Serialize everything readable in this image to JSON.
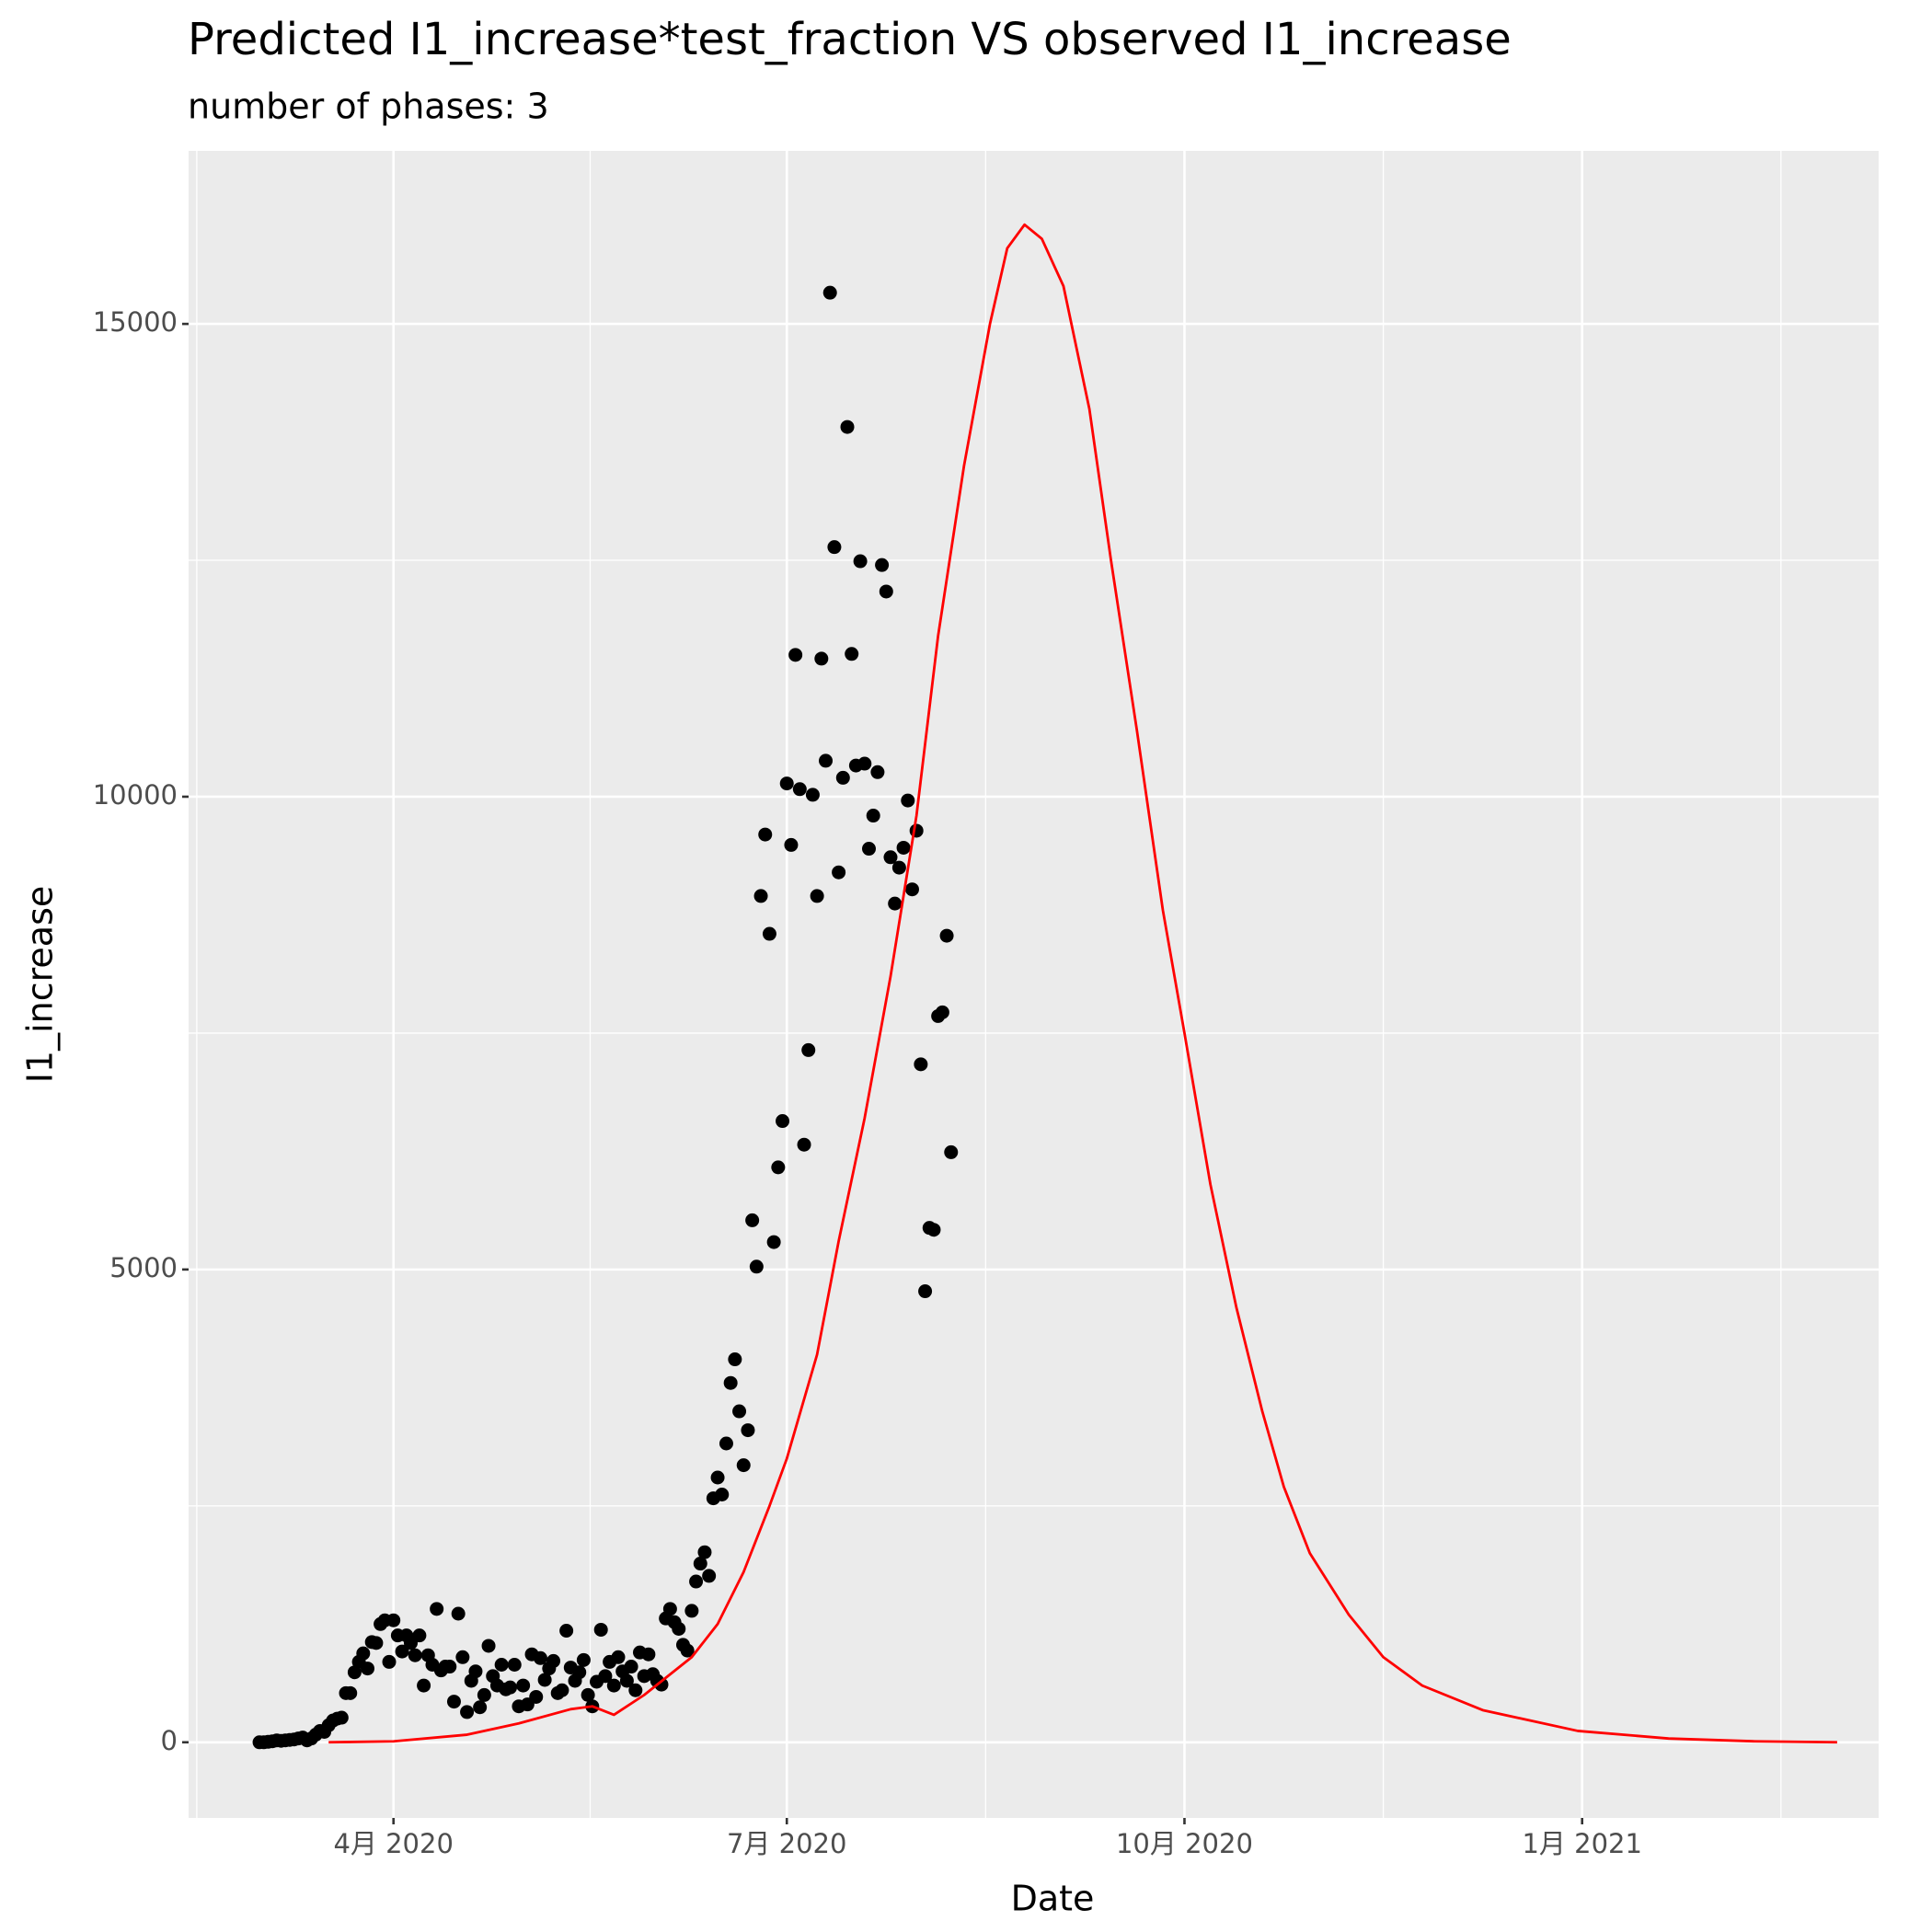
{
  "chart_data": {
    "type": "scatter",
    "title": "Predicted I1_increase*test_fraction VS observed I1_increase",
    "subtitle": "number of phases: 3",
    "x_label": "Date",
    "y_label": "I1_increase",
    "xlim": [
      43.6,
      434.6
    ],
    "ylim": [
      -800,
      16830
    ],
    "xticks": [
      {
        "value": 91,
        "label": "4月 2020"
      },
      {
        "value": 182,
        "label": "7月 2020"
      },
      {
        "value": 274,
        "label": "10月 2020"
      },
      {
        "value": 366,
        "label": "1月 2021"
      }
    ],
    "yticks": [
      0,
      5000,
      10000,
      15000
    ],
    "grid": true,
    "minor_grid": true,
    "series": [
      {
        "type": "scatter",
        "color": "#000000",
        "x": [
          60,
          61,
          62,
          63,
          64,
          65,
          66,
          67,
          68,
          69,
          70,
          71,
          72,
          73,
          74,
          75,
          76,
          77,
          78,
          79,
          80,
          81,
          82,
          83,
          84,
          85,
          86,
          87,
          88,
          89,
          90,
          91,
          92,
          93,
          94,
          95,
          96,
          97,
          98,
          99,
          100,
          101,
          102,
          103,
          104,
          105,
          106,
          107,
          108,
          109,
          110,
          111,
          112,
          113,
          114,
          115,
          116,
          117,
          118,
          119,
          120,
          121,
          122,
          123,
          124,
          125,
          126,
          127,
          128,
          129,
          130,
          131,
          132,
          133,
          134,
          135,
          136,
          137,
          138,
          139,
          140,
          141,
          142,
          143,
          144,
          145,
          146,
          147,
          148,
          149,
          150,
          151,
          152,
          153,
          154,
          155,
          156,
          157,
          158,
          159,
          160,
          161,
          162,
          163,
          164,
          165,
          166,
          167,
          168,
          169,
          170,
          171,
          172,
          173,
          174,
          175,
          176,
          177,
          178,
          179,
          180,
          181,
          182,
          183,
          184,
          185,
          186,
          187,
          188,
          189,
          190,
          191,
          192,
          193,
          194,
          195,
          196,
          197,
          198,
          199,
          200,
          201,
          202,
          203,
          204,
          205,
          206,
          207,
          208,
          209,
          210,
          211,
          212,
          213,
          214,
          215,
          216,
          217,
          218,
          219,
          220
        ],
        "values": [
          0,
          0,
          5,
          10,
          20,
          15,
          20,
          25,
          30,
          40,
          50,
          20,
          40,
          80,
          120,
          110,
          180,
          230,
          250,
          260,
          520,
          520,
          740,
          850,
          940,
          780,
          1060,
          1050,
          1250,
          1290,
          850,
          1290,
          1130,
          960,
          1130,
          1050,
          920,
          1130,
          600,
          920,
          820,
          1410,
          760,
          800,
          800,
          430,
          1360,
          900,
          320,
          650,
          750,
          370,
          500,
          1020,
          700,
          600,
          820,
          560,
          580,
          820,
          380,
          600,
          400,
          930,
          480,
          890,
          660,
          780,
          860,
          520,
          550,
          1180,
          790,
          650,
          740,
          870,
          500,
          380,
          640,
          1190,
          700,
          850,
          600,
          900,
          750,
          650,
          800,
          550,
          950,
          700,
          930,
          720,
          650,
          610,
          1310,
          1410,
          1270,
          1200,
          1030,
          970,
          1390,
          1700,
          1890,
          2010,
          1760,
          2580,
          2800,
          2620,
          3160,
          3800,
          4050,
          3500,
          2930,
          3300,
          5520,
          5030,
          8950,
          9600,
          8550,
          5290,
          6080,
          6570,
          10140,
          9490,
          11500,
          10080,
          6320,
          7320,
          10020,
          8950,
          11460,
          10380,
          15330,
          12640,
          9200,
          10200,
          13910,
          11510,
          10330,
          12490,
          10350,
          9450,
          9800,
          10260,
          12450,
          12170,
          9360,
          8870,
          9250,
          9460,
          9960,
          9020,
          9640,
          7170,
          4770,
          5440,
          5420,
          7680,
          7720,
          8530,
          6240
        ]
      },
      {
        "type": "line",
        "color": "#ff0000",
        "x": [
          76,
          91,
          108,
          120,
          132,
          137,
          142,
          149,
          160,
          166,
          172,
          178,
          182,
          189,
          194,
          200,
          206,
          212,
          217,
          223,
          229,
          233,
          237,
          241,
          246,
          252,
          257,
          263,
          269,
          274,
          280,
          286,
          292,
          297,
          303,
          312,
          320,
          329,
          343,
          365,
          386,
          406,
          425
        ],
        "values": [
          0,
          10,
          80,
          200,
          350,
          380,
          290,
          500,
          900,
          1250,
          1800,
          2500,
          3000,
          4100,
          5300,
          6600,
          8100,
          9800,
          11700,
          13500,
          15000,
          15800,
          16050,
          15900,
          15400,
          14100,
          12500,
          10700,
          8800,
          7500,
          5900,
          4600,
          3500,
          2700,
          2000,
          1350,
          900,
          600,
          340,
          120,
          40,
          10,
          0
        ]
      }
    ]
  }
}
